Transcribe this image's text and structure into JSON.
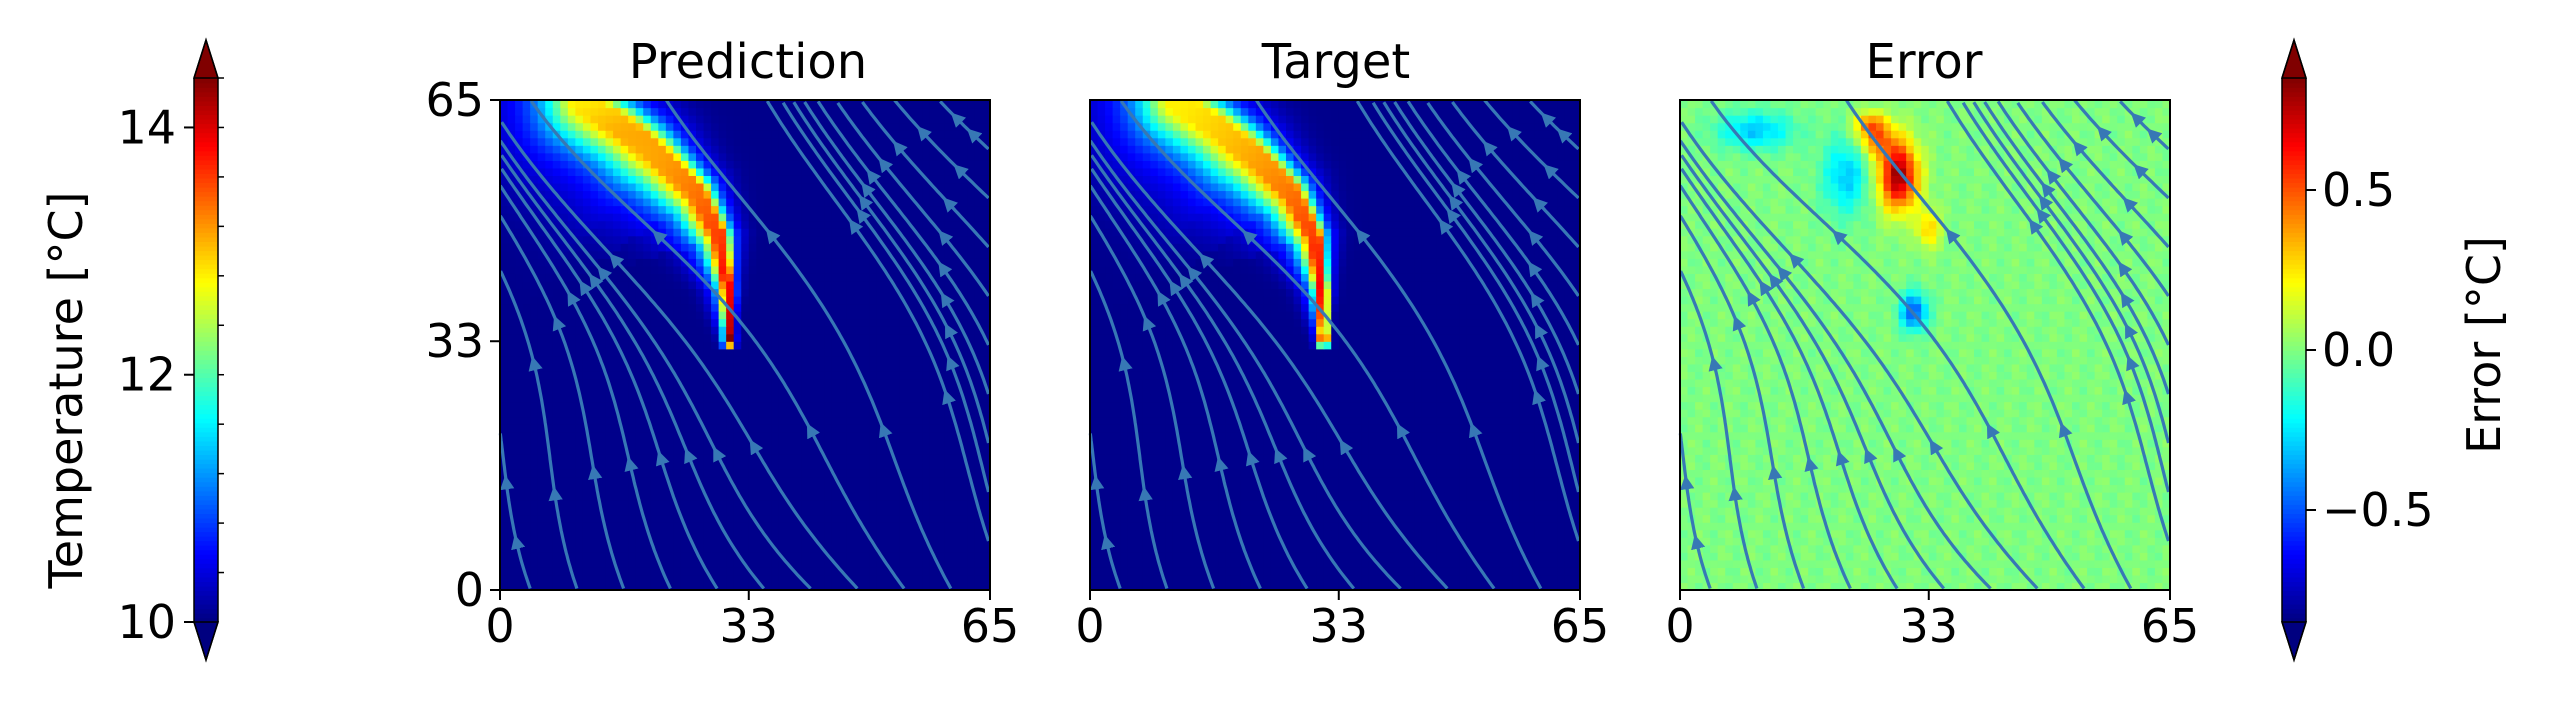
{
  "chart_data": {
    "type": "heatmap",
    "colormap": "jet",
    "stream_color": "#3778b5",
    "colorbar_left": {
      "label": "Temperature [°C]",
      "range": [
        10,
        14.4
      ],
      "ticks": [
        {
          "value": 10,
          "label": "10"
        },
        {
          "value": 12,
          "label": "12"
        },
        {
          "value": 14,
          "label": "14"
        }
      ],
      "extend": "both"
    },
    "colorbar_right": {
      "label": "Error [°C]",
      "range": [
        -0.85,
        0.85
      ],
      "ticks": [
        {
          "value": -0.5,
          "label": "−0.5"
        },
        {
          "value": 0,
          "label": "0.0"
        },
        {
          "value": 0.5,
          "label": "0.5"
        }
      ],
      "extend": "both"
    },
    "panels": [
      {
        "title": "Prediction",
        "field": "temperature",
        "xlim": [
          0,
          65
        ],
        "ylim": [
          0,
          65
        ],
        "xticks": [
          {
            "value": 0,
            "label": "0"
          },
          {
            "value": 33,
            "label": "33"
          },
          {
            "value": 65,
            "label": "65"
          }
        ],
        "yticks": [
          {
            "value": 0,
            "label": "0"
          },
          {
            "value": 33,
            "label": "33"
          },
          {
            "value": 65,
            "label": "65"
          }
        ]
      },
      {
        "title": "Target",
        "field": "temperature",
        "xlim": [
          0,
          65
        ],
        "ylim": [
          0,
          65
        ],
        "xticks": [
          {
            "value": 0,
            "label": "0"
          },
          {
            "value": 33,
            "label": "33"
          },
          {
            "value": 65,
            "label": "65"
          }
        ]
      },
      {
        "title": "Error",
        "field": "error",
        "xlim": [
          0,
          65
        ],
        "ylim": [
          0,
          65
        ],
        "xticks": [
          {
            "value": 0,
            "label": "0"
          },
          {
            "value": 33,
            "label": "33"
          },
          {
            "value": 65,
            "label": "65"
          }
        ]
      }
    ],
    "plume": {
      "source": [
        31,
        33
      ],
      "ridge": [
        [
          31,
          33
        ],
        [
          31,
          40
        ],
        [
          30,
          47
        ],
        [
          27,
          53
        ],
        [
          22,
          58
        ],
        [
          17,
          62
        ],
        [
          12,
          65
        ]
      ],
      "spread": [
        [
          0,
          0.8
        ],
        [
          8,
          2.5
        ],
        [
          17,
          5.5
        ],
        [
          30,
          9
        ]
      ],
      "background": 10.05,
      "peak": 14.2
    },
    "error_blobs": [
      {
        "x": 29,
        "y": 55,
        "sx": 2.6,
        "sy": 4.5,
        "amp": 0.8
      },
      {
        "x": 26,
        "y": 60,
        "sx": 2.5,
        "sy": 2.5,
        "amp": 0.4
      },
      {
        "x": 33,
        "y": 48,
        "sx": 1.5,
        "sy": 2.5,
        "amp": 0.3
      },
      {
        "x": 10,
        "y": 61,
        "sx": 5,
        "sy": 2.5,
        "amp": -0.3
      },
      {
        "x": 22,
        "y": 55,
        "sx": 3,
        "sy": 5,
        "amp": -0.3
      },
      {
        "x": 31,
        "y": 37,
        "sx": 1.8,
        "sy": 2.5,
        "amp": -0.5
      },
      {
        "x": 25,
        "y": 62,
        "sx": 2,
        "sy": 1.5,
        "amp": 0.3
      }
    ]
  }
}
